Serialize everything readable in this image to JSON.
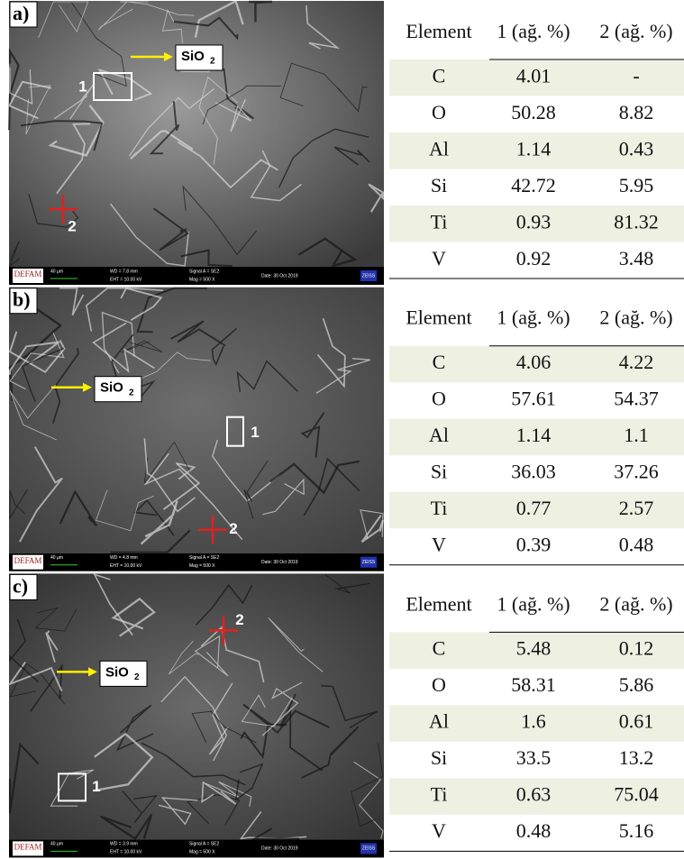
{
  "panels": [
    {
      "label": "a)",
      "callout": {
        "text": "SiO",
        "subscript": "2"
      },
      "markers": [
        "1",
        "2"
      ],
      "info_bar": {
        "logo": "DEFAM",
        "scale": "40 µm",
        "wd": "WD = 7.8 mm",
        "eht": "EHT = 10.00 kV",
        "signal": "Signal A = SE2",
        "mag": "Mag = 500 X",
        "date": "Date: 30 Oct 2019",
        "brand": "ZEISS"
      },
      "table": {
        "header": [
          "Element",
          "1 (ağ. %)",
          "2 (ağ. %)"
        ],
        "rows": [
          [
            "C",
            "4.01",
            "-"
          ],
          [
            "O",
            "50.28",
            "8.82"
          ],
          [
            "Al",
            "1.14",
            "0.43"
          ],
          [
            "Si",
            "42.72",
            "5.95"
          ],
          [
            "Ti",
            "0.93",
            "81.32"
          ],
          [
            "V",
            "0.92",
            "3.48"
          ]
        ]
      }
    },
    {
      "label": "b)",
      "callout": {
        "text": "SiO",
        "subscript": "2"
      },
      "markers": [
        "1",
        "2"
      ],
      "info_bar": {
        "logo": "DEFAM",
        "scale": "40 µm",
        "wd": "WD = 4.8 mm",
        "eht": "EHT = 10.00 kV",
        "signal": "Signal A = SE2",
        "mag": "Mag = 500 X",
        "date": "Date: 30 Oct 2019",
        "brand": "ZEISS"
      },
      "table": {
        "header": [
          "Element",
          "1 (ağ. %)",
          "2 (ağ. %)"
        ],
        "rows": [
          [
            "C",
            "4.06",
            "4.22"
          ],
          [
            "O",
            "57.61",
            "54.37"
          ],
          [
            "Al",
            "1.14",
            "1.1"
          ],
          [
            "Si",
            "36.03",
            "37.26"
          ],
          [
            "Ti",
            "0.77",
            "2.57"
          ],
          [
            "V",
            "0.39",
            "0.48"
          ]
        ]
      }
    },
    {
      "label": "c)",
      "callout": {
        "text": "SiO",
        "subscript": "2"
      },
      "markers": [
        "1",
        "2"
      ],
      "info_bar": {
        "logo": "DEFAM",
        "scale": "40 µm",
        "wd": "WD = 3.9 mm",
        "eht": "EHT = 10.00 kV",
        "signal": "Signal A = SE2",
        "mag": "Mag = 500 X",
        "date": "Date: 30 Oct 2019",
        "brand": "ZEISS"
      },
      "table": {
        "header": [
          "Element",
          "1 (ağ. %)",
          "2 (ağ. %)"
        ],
        "rows": [
          [
            "C",
            "5.48",
            "0.12"
          ],
          [
            "O",
            "58.31",
            "5.86"
          ],
          [
            "Al",
            "1.6",
            "0.61"
          ],
          [
            "Si",
            "33.5",
            "13.2"
          ],
          [
            "Ti",
            "0.63",
            "75.04"
          ],
          [
            "V",
            "0.48",
            "5.16"
          ]
        ]
      }
    }
  ]
}
